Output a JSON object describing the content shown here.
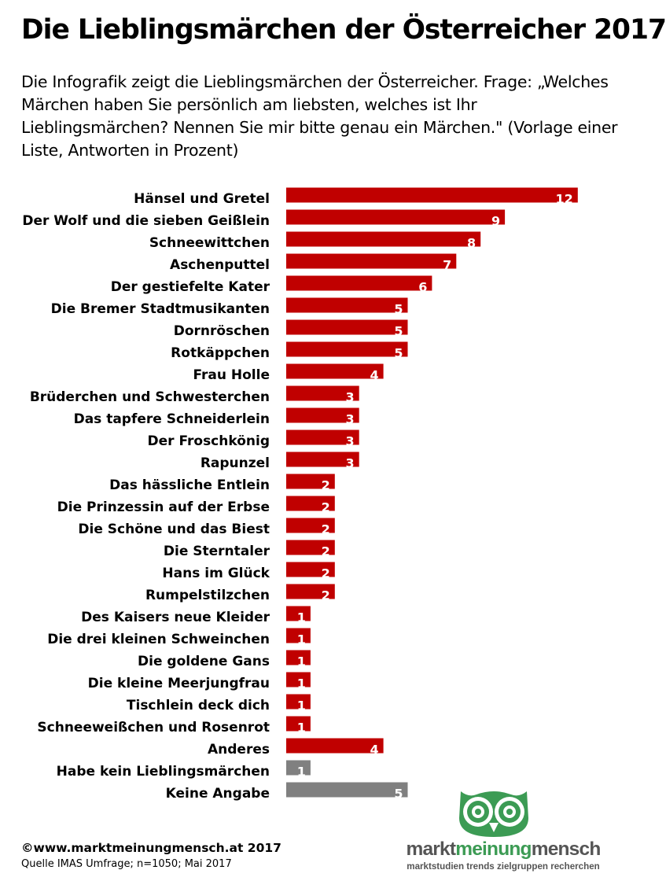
{
  "page": {
    "title": "Die Lieblingsmärchen der Österreicher 2017",
    "subtitle": "Die Infografik zeigt die Lieblingsmärchen der Österreicher. Frage: „Welches Märchen haben Sie persönlich am liebsten, welches ist Ihr Lieblingsmärchen? Nennen Sie mir bitte genau ein Märchen.\" (Vorlage einer Liste, Antworten in Prozent)",
    "footer_copyright": "©www.marktmeinungmensch.at 2017",
    "footer_source": "Quelle IMAS Umfrage; n=1050; Mai 2017"
  },
  "logo": {
    "word_1": "markt",
    "word_2": "meinung",
    "word_3": "mensch",
    "tagline": "marktstudien trends zielgruppen recherchen",
    "icon": "owl-icon",
    "colors": {
      "green": "#3c9b54",
      "gray": "#555555"
    }
  },
  "chart_data": {
    "type": "bar",
    "orientation": "horizontal",
    "unit": "%",
    "categories": [
      "Hänsel und Gretel",
      "Der Wolf und die sieben Geißlein",
      "Schneewittchen",
      "Aschenputtel",
      "Der gestiefelte Kater",
      "Die Bremer Stadtmusikanten",
      "Dornröschen",
      "Rotkäppchen",
      "Frau Holle",
      "Brüderchen und Schwesterchen",
      "Das tapfere Schneiderlein",
      "Der Froschkönig",
      "Rapunzel",
      "Das hässliche Entlein",
      "Die Prinzessin auf der Erbse",
      "Die Schöne und das Biest",
      "Die Sterntaler",
      "Hans im Glück",
      "Rumpelstilzchen",
      "Des Kaisers neue Kleider",
      "Die drei kleinen Schweinchen",
      "Die goldene Gans",
      "Die kleine Meerjungfrau",
      "Tischlein deck dich",
      "Schneeweißchen und Rosenrot",
      "Anderes",
      "Habe kein Lieblingsmärchen",
      "Keine Angabe"
    ],
    "values": [
      12,
      9,
      8,
      7,
      6,
      5,
      5,
      5,
      4,
      3,
      3,
      3,
      3,
      2,
      2,
      2,
      2,
      2,
      2,
      1,
      1,
      1,
      1,
      1,
      1,
      4,
      1,
      5
    ],
    "bar_colors": [
      "#c00000",
      "#c00000",
      "#c00000",
      "#c00000",
      "#c00000",
      "#c00000",
      "#c00000",
      "#c00000",
      "#c00000",
      "#c00000",
      "#c00000",
      "#c00000",
      "#c00000",
      "#c00000",
      "#c00000",
      "#c00000",
      "#c00000",
      "#c00000",
      "#c00000",
      "#c00000",
      "#c00000",
      "#c00000",
      "#c00000",
      "#c00000",
      "#c00000",
      "#c00000",
      "#808080",
      "#808080"
    ],
    "data_labels": "inside-end",
    "grid": false,
    "axes_visible": false
  }
}
